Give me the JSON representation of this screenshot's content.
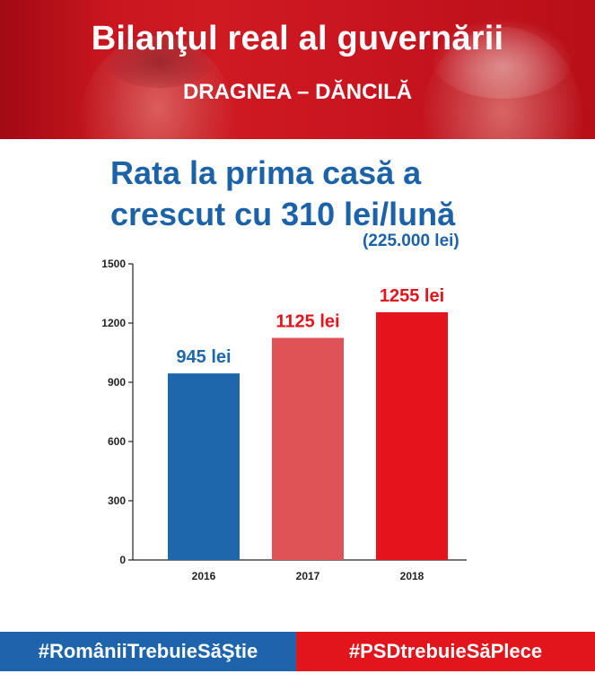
{
  "header": {
    "title": "Bilanţul real al guvernării",
    "subtitle": "DRAGNEA – DĂNCILĂ"
  },
  "heading": {
    "line1": "Rata la prima casă a",
    "line2": "crescut cu 310 lei/lună",
    "note": "(225.000 lei)"
  },
  "chart_data": {
    "type": "bar",
    "categories": [
      "2016",
      "2017",
      "2018"
    ],
    "values": [
      945,
      1125,
      1255
    ],
    "data_labels": [
      "945 lei",
      "1125 lei",
      "1255 lei"
    ],
    "bar_colors": [
      "#1e67ad",
      "#df5357",
      "#e5141c"
    ],
    "label_colors": [
      "#1e67ad",
      "#e5141c",
      "#e5141c"
    ],
    "ylim": [
      0,
      1500
    ],
    "yticks": [
      0,
      300,
      600,
      900,
      1200,
      1500
    ],
    "grid": false,
    "title": "Rata la prima casă a crescut cu 310 lei/lună",
    "xlabel": "",
    "ylabel": ""
  },
  "footer": {
    "left_tag": "#RomâniiTrebuieSăŞtie",
    "right_tag": "#PSDtrebuieSăPlece"
  },
  "colors": {
    "brand_red": "#d01a22",
    "brand_blue": "#1d64ad"
  }
}
